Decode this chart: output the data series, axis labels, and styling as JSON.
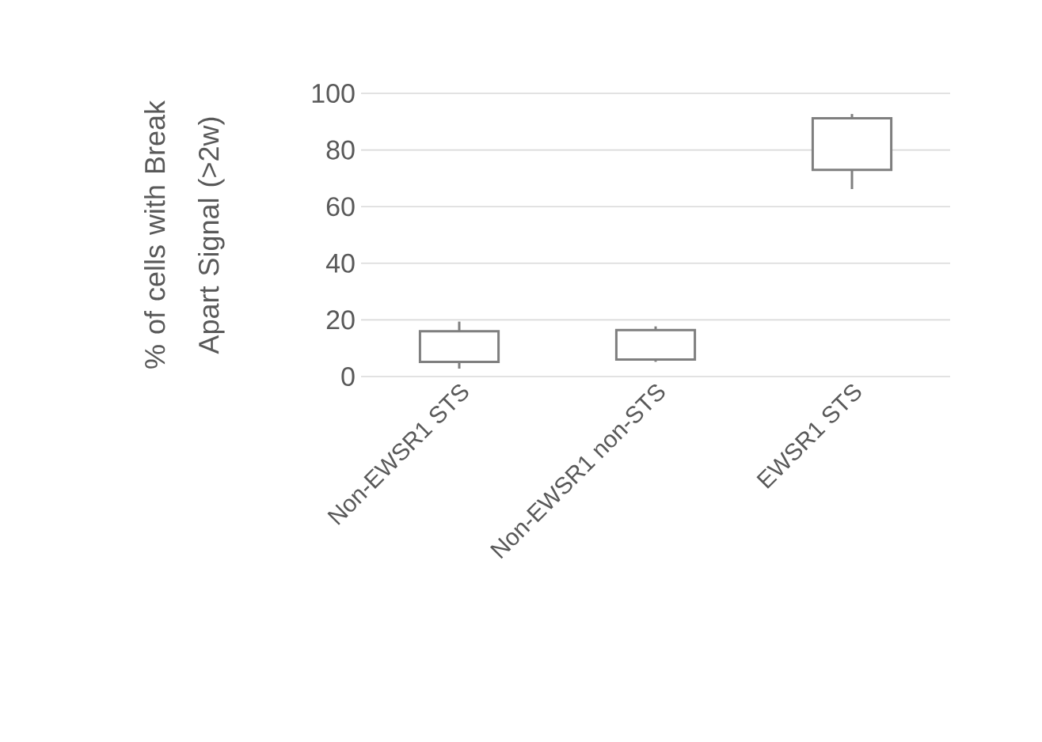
{
  "chart_data": {
    "type": "candlestick",
    "categories": [
      "Non-EWSR1 STS",
      "Non-EWSR1 non-STS",
      "EWSR1 STS"
    ],
    "ohlc": [
      [
        5.2,
        19.4,
        2.8,
        16
      ],
      [
        6,
        17.7,
        5.2,
        16.4
      ],
      [
        73,
        92.7,
        66.2,
        91.2
      ]
    ],
    "color": "#7f7f7f",
    "ylabel": "% of  cells with Break Apart Signal  (>2w)",
    "ylim": [
      0,
      100
    ],
    "yticks": [
      0,
      20,
      40,
      60,
      80,
      100
    ],
    "grid": "y"
  }
}
